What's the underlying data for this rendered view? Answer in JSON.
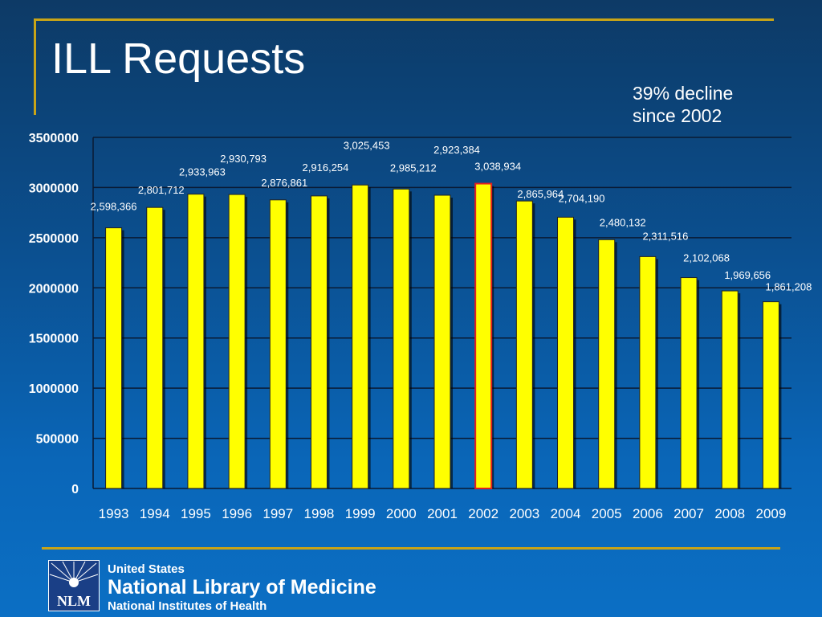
{
  "slide": {
    "title": "ILL Requests",
    "note_line1": "39% decline",
    "note_line2": "since 2002"
  },
  "colors": {
    "bar_fill": "#ffff00",
    "highlight_outline": "#e21f1f",
    "text": "#ffffff",
    "accent_rule": "#c8a418"
  },
  "chart_data": {
    "type": "bar",
    "categories": [
      "1993",
      "1994",
      "1995",
      "1996",
      "1997",
      "1998",
      "1999",
      "2000",
      "2001",
      "2002",
      "2003",
      "2004",
      "2005",
      "2006",
      "2007",
      "2008",
      "2009"
    ],
    "values": [
      2598366,
      2801712,
      2933963,
      2930793,
      2876861,
      2916254,
      3025453,
      2985212,
      2923384,
      3038934,
      2865964,
      2704190,
      2480132,
      2311516,
      2102068,
      1969656,
      1861208
    ],
    "data_labels": [
      "2,598,366",
      "2,801,712",
      "2,933,963",
      "2,930,793",
      "2,876,861",
      "2,916,254",
      "3,025,453",
      "2,985,212",
      "2,923,384",
      "3,038,934",
      "2,865,964",
      "2,704,190",
      "2,480,132",
      "2,311,516",
      "2,102,068",
      "1,969,656",
      "1,861,208"
    ],
    "ylim": [
      0,
      3500000
    ],
    "y_ticks": [
      0,
      500000,
      1000000,
      1500000,
      2000000,
      2500000,
      3000000,
      3500000
    ],
    "grid": true,
    "highlight_category": "2002",
    "title": "",
    "xlabel": "",
    "ylabel": ""
  },
  "footer": {
    "logo_text": "NLM",
    "line1": "United States",
    "line2": "National Library of Medicine",
    "line3": "National Institutes of Health"
  }
}
